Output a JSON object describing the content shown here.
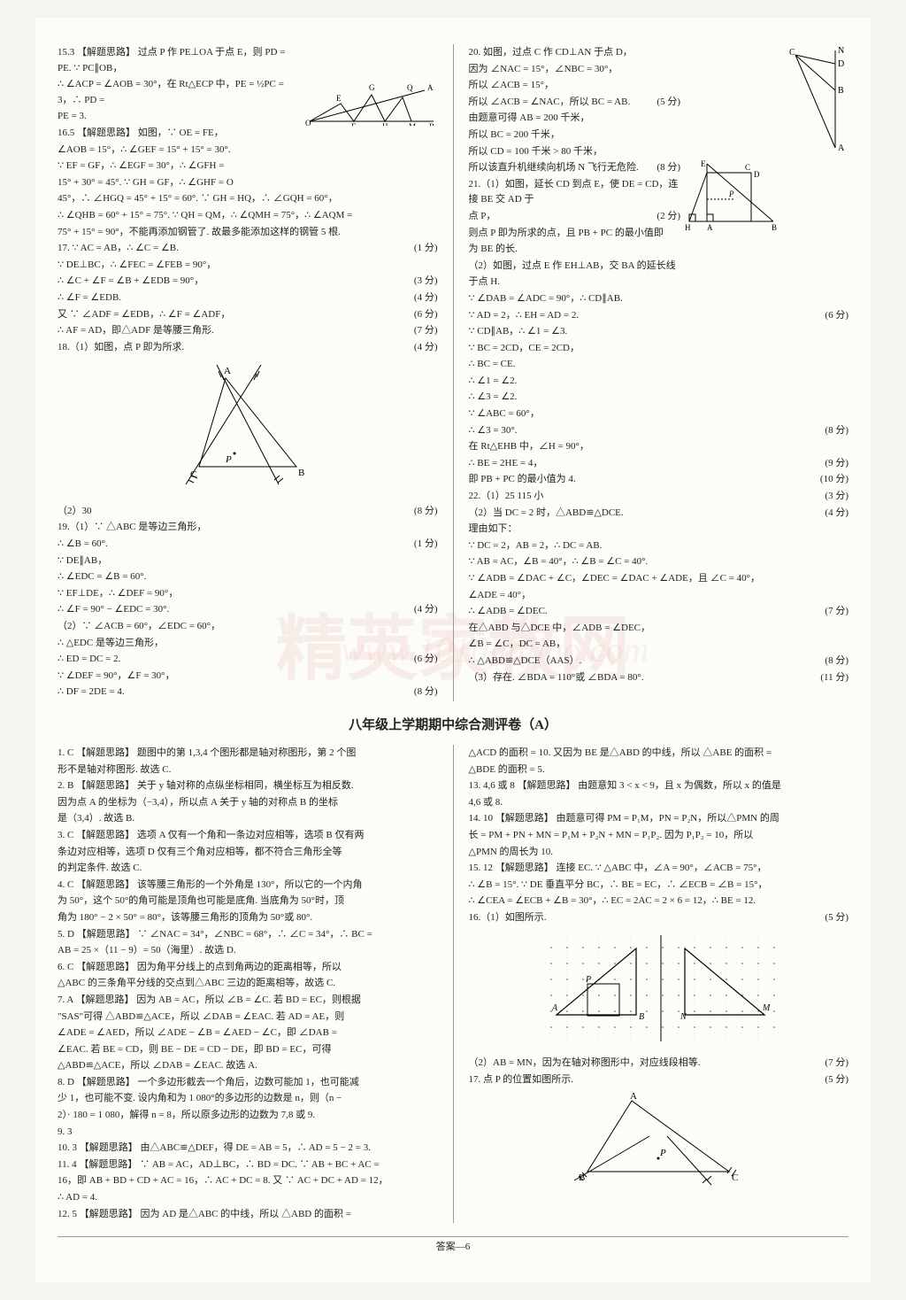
{
  "watermark_main": "精英家教网",
  "watermark_url": "www.1010jiajiao.com",
  "footer": "答案—6",
  "section_title": "八年级上学期期中综合测评卷（A）",
  "top_left": [
    {
      "t": "15.3 【解题思路】 过点 P 作 PE⊥OA 于点 E，则 PD = PE. ∵ PC∥OB，"
    },
    {
      "t": "∴ ∠ACP = ∠AOB = 30°，在 Rt△ECP 中，PE = ½PC = 3，∴ PD ="
    },
    {
      "t": "PE = 3."
    },
    {
      "t": "16.5 【解题思路】 如图，∵ OE = FE，"
    },
    {
      "t": "∠AOB = 15°，∴ ∠GEF = 15° + 15° = 30°."
    },
    {
      "t": "∵ EF = GF，∴ ∠EGF = 30°，∴ ∠GFH ="
    },
    {
      "t": "15° + 30° = 45°. ∵ GH = GF，∴ ∠GHF = O"
    },
    {
      "t": "45°，∴ ∠HGQ = 45° + 15° = 60°. ∵ GH = HQ，∴ ∠GQH = 60°，"
    },
    {
      "t": "∴ ∠QHB = 60° + 15° = 75°. ∵ QH = QM，∴ ∠QMH = 75°，∴ ∠AQM ="
    },
    {
      "t": "75° + 15° = 90°，不能再添加钢管了. 故最多能添加这样的钢管 5 根."
    },
    {
      "t": "17. ∵ AC = AB，∴ ∠C = ∠B.",
      "s": "(1 分)"
    },
    {
      "t": "∵ DE⊥BC，∴ ∠FEC = ∠FEB = 90°，"
    },
    {
      "t": "∴ ∠C + ∠F = ∠B + ∠EDB = 90°，",
      "s": "(3 分)"
    },
    {
      "t": "∴ ∠F = ∠EDB.",
      "s": "(4 分)"
    },
    {
      "t": "又 ∵ ∠ADF = ∠EDB，∴ ∠F = ∠ADF，",
      "s": "(6 分)"
    },
    {
      "t": "∴ AF = AD，即△ADF 是等腰三角形.",
      "s": "(7 分)"
    },
    {
      "t": "18.（1）如图，点 P 即为所求.",
      "s": "(4 分)"
    }
  ],
  "top_left_after_fig": [
    {
      "t": "（2）30",
      "s": "(8 分)"
    },
    {
      "t": "19.（1）∵ △ABC 是等边三角形，"
    },
    {
      "t": "∴ ∠B = 60°.",
      "s": "(1 分)"
    },
    {
      "t": "∵ DE∥AB，"
    },
    {
      "t": "∴ ∠EDC = ∠B = 60°."
    },
    {
      "t": "∵ EF⊥DE，∴ ∠DEF = 90°，"
    },
    {
      "t": "∴ ∠F = 90° − ∠EDC = 30°.",
      "s": "(4 分)"
    },
    {
      "t": "（2）∵ ∠ACB = 60°，∠EDC = 60°，"
    },
    {
      "t": "∴ △EDC 是等边三角形，"
    },
    {
      "t": "∴ ED = DC = 2.",
      "s": "(6 分)"
    },
    {
      "t": "∵ ∠DEF = 90°，∠F = 30°，"
    },
    {
      "t": "∴ DF = 2DE = 4.",
      "s": "(8 分)"
    }
  ],
  "top_right": [
    {
      "t": "20. 如图，过点 C 作 CD⊥AN 于点 D，"
    },
    {
      "t": "因为 ∠NAC = 15°，∠NBC = 30°，"
    },
    {
      "t": "所以 ∠ACB = 15°，"
    },
    {
      "t": "所以 ∠ACB = ∠NAC，所以 BC = AB.",
      "s": "(5 分)"
    },
    {
      "t": "由题意可得 AB = 200 千米，"
    },
    {
      "t": "所以 BC = 200 千米，"
    },
    {
      "t": "所以 CD = 100 千米 > 80 千米，"
    },
    {
      "t": "所以该直升机继续向机场 N 飞行无危险.",
      "s": "(8 分)"
    },
    {
      "t": "21.（1）如图，延长 CD 到点 E，使 DE = CD，连接 BE 交 AD 于"
    },
    {
      "t": "点 P，",
      "s": "(2 分)"
    },
    {
      "t": "则点 P 即为所求的点，且 PB + PC 的最小值即"
    },
    {
      "t": "为 BE 的长."
    },
    {
      "t": "（2）如图，过点 E 作 EH⊥AB，交 BA 的延长线"
    },
    {
      "t": "于点 H."
    },
    {
      "t": "∵ ∠DAB = ∠ADC = 90°，∴ CD∥AB."
    },
    {
      "t": "∵ AD = 2，∴ EH = AD = 2.",
      "s": "(6 分)"
    },
    {
      "t": "∵ CD∥AB，∴ ∠1 = ∠3."
    },
    {
      "t": "∵ BC = 2CD，CE = 2CD，"
    },
    {
      "t": "∴ BC = CE."
    },
    {
      "t": "∴ ∠1 = ∠2."
    },
    {
      "t": "∴ ∠3 = ∠2."
    },
    {
      "t": "∵ ∠ABC = 60°，"
    },
    {
      "t": "∴ ∠3 = 30°.",
      "s": "(8 分)"
    },
    {
      "t": "在 Rt△EHB 中，∠H = 90°，"
    },
    {
      "t": "∴ BE = 2HE = 4，",
      "s": "(9 分)"
    },
    {
      "t": "即 PB + PC 的最小值为 4.",
      "s": "(10 分)"
    },
    {
      "t": "22.（1）25  115  小",
      "s": "(3 分)"
    },
    {
      "t": "（2）当 DC = 2 时，△ABD≌△DCE.",
      "s": "(4 分)"
    },
    {
      "t": "理由如下："
    },
    {
      "t": "∵ DC = 2，AB = 2，∴ DC = AB."
    },
    {
      "t": "∵ AB = AC，∠B = 40°，∴ ∠B = ∠C = 40°."
    },
    {
      "t": "∵ ∠ADB = ∠DAC + ∠C，∠DEC = ∠DAC + ∠ADE，且 ∠C = 40°，"
    },
    {
      "t": "∠ADE = 40°，"
    },
    {
      "t": "∴ ∠ADB = ∠DEC.",
      "s": "(7 分)"
    },
    {
      "t": "在△ABD 与△DCE 中，∠ADB = ∠DEC，"
    },
    {
      "t": "∠B = ∠C，DC = AB，"
    },
    {
      "t": "∴ △ABD≌△DCE（AAS）.",
      "s": "(8 分)"
    },
    {
      "t": "（3）存在. ∠BDA = 110°或 ∠BDA = 80°.",
      "s": "(11 分)"
    }
  ],
  "bottom_left": [
    {
      "t": "1. C 【解题思路】 题图中的第 1,3,4 个图形都是轴对称图形，第 2 个图"
    },
    {
      "t": "形不是轴对称图形. 故选 C."
    },
    {
      "t": "2. B 【解题思路】 关于 y 轴对称的点纵坐标相同，横坐标互为相反数."
    },
    {
      "t": "因为点 A 的坐标为（−3,4），所以点 A 关于 y 轴的对称点 B 的坐标"
    },
    {
      "t": "是（3,4）. 故选 B."
    },
    {
      "t": "3. C 【解题思路】 选项 A 仅有一个角和一条边对应相等，选项 B 仅有两"
    },
    {
      "t": "条边对应相等，选项 D 仅有三个角对应相等，都不符合三角形全等"
    },
    {
      "t": "的判定条件. 故选 C."
    },
    {
      "t": "4. C 【解题思路】 该等腰三角形的一个外角是 130°，所以它的一个内角"
    },
    {
      "t": "为 50°，这个 50°的角可能是顶角也可能是底角. 当底角为 50°时，顶"
    },
    {
      "t": "角为 180° − 2 × 50° = 80°，该等腰三角形的顶角为 50°或 80°."
    },
    {
      "t": "5. D 【解题思路】 ∵ ∠NAC = 34°，∠NBC = 68°，∴ ∠C = 34°，∴ BC ="
    },
    {
      "t": "AB = 25 ×（11 − 9）= 50（海里）. 故选 D."
    },
    {
      "t": "6. C 【解题思路】 因为角平分线上的点到角两边的距离相等，所以"
    },
    {
      "t": "△ABC 的三条角平分线的交点到△ABC 三边的距离相等，故选 C."
    },
    {
      "t": "7. A 【解题思路】 因为 AB = AC，所以 ∠B = ∠C. 若 BD = EC，则根据"
    },
    {
      "t": "\"SAS\"可得 △ABD≌△ACE，所以 ∠DAB = ∠EAC. 若 AD = AE，则"
    },
    {
      "t": "∠ADE = ∠AED，所以 ∠ADE − ∠B = ∠AED − ∠C，即 ∠DAB ="
    },
    {
      "t": "∠EAC. 若 BE = CD，则 BE − DE = CD − DE，即 BD = EC，可得"
    },
    {
      "t": "△ABD≌△ACE，所以 ∠DAB = ∠EAC. 故选 A."
    },
    {
      "t": "8. D 【解题思路】 一个多边形截去一个角后，边数可能加 1，也可能减"
    },
    {
      "t": "少 1，也可能不变. 设内角和为 1 080°的多边形的边数是 n，则（n −"
    },
    {
      "t": "2）· 180 = 1 080，解得 n = 8，所以原多边形的边数为 7,8 或 9."
    },
    {
      "t": "9. 3"
    },
    {
      "t": "10. 3 【解题思路】 由△ABC≌△DEF，得 DE = AB = 5，∴ AD = 5 − 2 = 3."
    },
    {
      "t": "11. 4 【解题思路】 ∵ AB = AC，AD⊥BC，∴ BD = DC. ∵ AB + BC + AC ="
    },
    {
      "t": "16，即 AB + BD + CD + AC = 16，∴ AC + DC = 8. 又 ∵ AC + DC + AD = 12，"
    },
    {
      "t": "∴ AD = 4."
    },
    {
      "t": "12. 5 【解题思路】 因为 AD 是△ABC 的中线，所以 △ABD 的面积 ="
    }
  ],
  "bottom_right": [
    {
      "t": "△ACD 的面积 = 10. 又因为 BE 是△ABD 的中线，所以 △ABE 的面积 ="
    },
    {
      "t": "△BDE 的面积 = 5."
    },
    {
      "t": "13. 4,6 或 8 【解题思路】 由题意知 3 < x < 9，且 x 为偶数，所以 x 的值是"
    },
    {
      "t": "4,6 或 8."
    },
    {
      "t": "14. 10 【解题思路】 由题意可得 PM = P₁M，PN = P₂N，所以△PMN 的周"
    },
    {
      "t": "长 = PM + PN + MN = P₁M + P₂N + MN = P₁P₂. 因为 P₁P₂ = 10，所以"
    },
    {
      "t": "△PMN 的周长为 10."
    },
    {
      "t": "15. 12 【解题思路】 连接 EC. ∵ △ABC 中，∠A = 90°，∠ACB = 75°，"
    },
    {
      "t": "∴ ∠B = 15°. ∵ DE 垂直平分 BC，∴ BE = EC，∴ ∠ECB = ∠B = 15°，"
    },
    {
      "t": "∴ ∠CEA = ∠ECB + ∠B = 30°，∴ EC = 2AC = 2 × 6 = 12，∴ BE = 12."
    },
    {
      "t": "16.（1）如图所示.",
      "s": "(5 分)"
    }
  ],
  "bottom_right_after": [
    {
      "t": "（2）AB = MN，因为在轴对称图形中，对应线段相等.",
      "s": "(7 分)"
    },
    {
      "t": "17. 点 P 的位置如图所示.",
      "s": "(5 分)"
    }
  ],
  "fig_q18": {
    "A": "A",
    "C": "C",
    "B": "B",
    "P": "P"
  },
  "fig_gefhm": {
    "G": "G",
    "Q": "Q",
    "A": "A",
    "E": "E",
    "O": "O",
    "F": "F",
    "H": "H",
    "M": "M",
    "B": "B"
  },
  "fig_q20": {
    "C": "C",
    "N": "N",
    "D": "D",
    "B": "B",
    "A": "A"
  },
  "fig_q21": {
    "E": "E",
    "C": "C",
    "D": "D",
    "P": "P",
    "H": "H",
    "A": "A",
    "B": "B"
  },
  "fig_q16": {
    "A": "A",
    "B": "B",
    "N": "N",
    "P": "P",
    "M": "M"
  },
  "fig_q17": {
    "A": "A",
    "B": "B",
    "C": "C",
    "P": "P"
  }
}
